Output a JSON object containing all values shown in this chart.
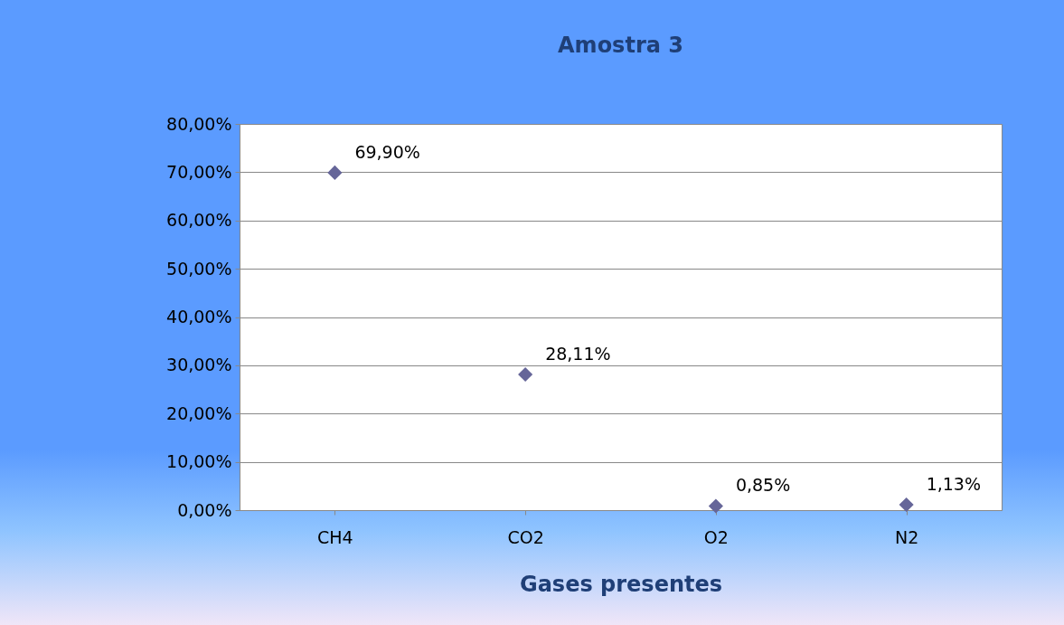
{
  "chart_data": {
    "type": "scatter",
    "title": "Amostra 3",
    "xlabel": "Gases presentes",
    "categories": [
      "CH4",
      "CO2",
      "O2",
      "N2"
    ],
    "series": [
      {
        "color": "#666699",
        "values": [
          69.9,
          28.11,
          0.85,
          1.13
        ],
        "value_labels": [
          "69,90%",
          "28,11%",
          "0,85%",
          "1,13%"
        ]
      }
    ],
    "ylim": [
      0,
      80
    ],
    "yticks": [
      {
        "value": 0,
        "label": "0,00%"
      },
      {
        "value": 10,
        "label": "10,00%"
      },
      {
        "value": 20,
        "label": "20,00%"
      },
      {
        "value": 30,
        "label": "30,00%"
      },
      {
        "value": 40,
        "label": "40,00%"
      },
      {
        "value": 50,
        "label": "50,00%"
      },
      {
        "value": 60,
        "label": "60,00%"
      },
      {
        "value": 70,
        "label": "70,00%"
      },
      {
        "value": 80,
        "label": "80,00%"
      }
    ],
    "grid": "y",
    "marker": "diamond"
  }
}
